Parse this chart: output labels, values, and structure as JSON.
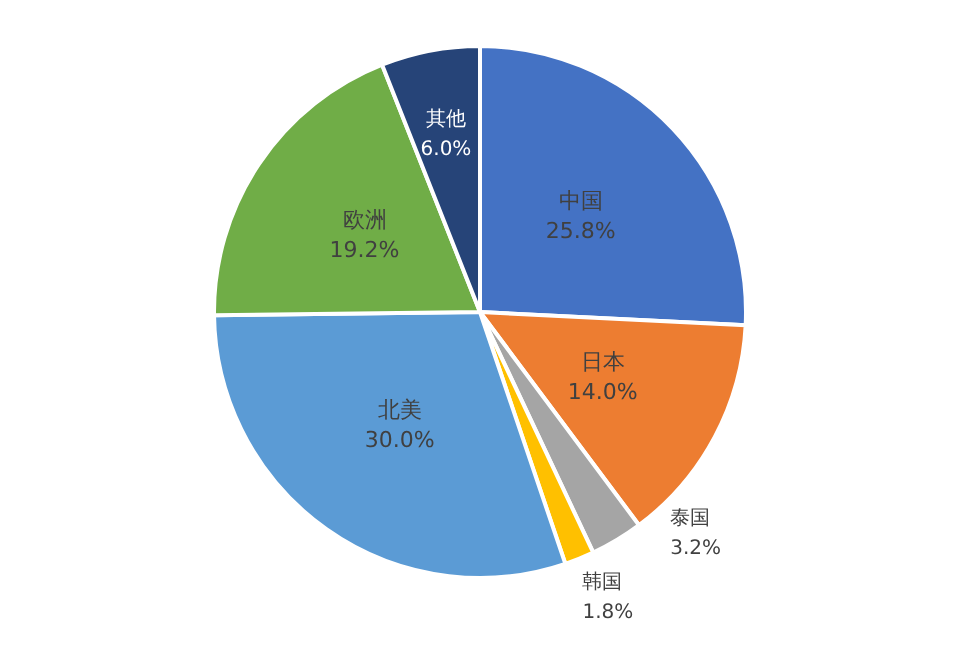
{
  "chart_data": {
    "type": "pie",
    "categories": [
      "中国",
      "日本",
      "泰国",
      "韩国",
      "北美",
      "欧洲",
      "其他"
    ],
    "values": [
      25.8,
      14.0,
      3.2,
      1.8,
      30.0,
      19.2,
      6.0
    ],
    "colors": [
      "#4472c4",
      "#ed7d31",
      "#a5a5a5",
      "#ffc000",
      "#5b9bd5",
      "#70ad47",
      "#264478"
    ],
    "value_labels": [
      "25.8%",
      "14.0%",
      "3.2%",
      "1.8%",
      "30.0%",
      "19.2%",
      "6.0%"
    ],
    "legend": false
  }
}
